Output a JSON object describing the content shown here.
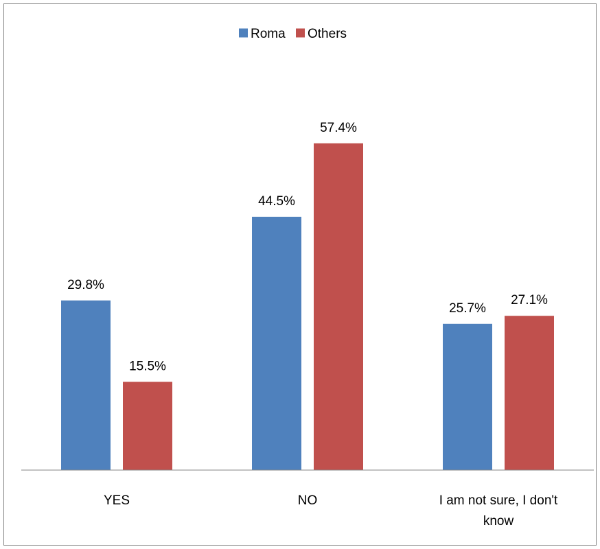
{
  "chart_data": {
    "type": "bar",
    "categories": [
      [
        "YES"
      ],
      [
        "NO"
      ],
      [
        "I am not sure, I don't",
        "know"
      ]
    ],
    "series": [
      {
        "name": "Roma",
        "values": [
          29.8,
          44.5,
          25.7
        ],
        "color": "#4F81BD"
      },
      {
        "name": "Others",
        "values": [
          15.5,
          57.4,
          27.1
        ],
        "color": "#C0504D"
      }
    ],
    "value_suffix": "%",
    "ylim": [
      0,
      70
    ],
    "legend": "top-center",
    "grid": false,
    "data_labels": true
  }
}
